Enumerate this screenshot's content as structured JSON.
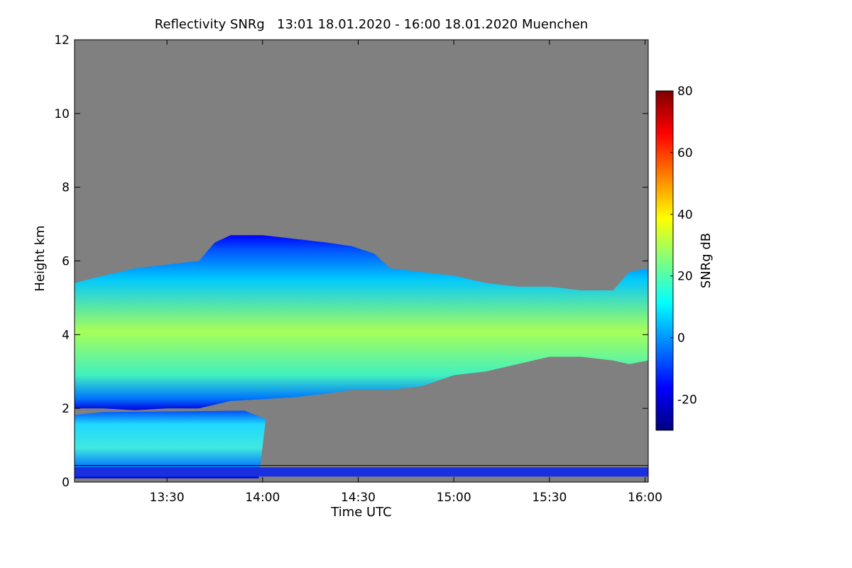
{
  "chart_data": {
    "type": "heatmap",
    "title": "Reflectivity SNRg   13:01 18.01.2020 - 16:00 18.01.2020 Muenchen",
    "xlabel": "Time UTC",
    "ylabel": "Height km",
    "xlim_minutes_utc": [
      781,
      961
    ],
    "ylim_km": [
      0,
      12
    ],
    "x_ticks": [
      {
        "minute": 810,
        "label": "13:30"
      },
      {
        "minute": 840,
        "label": "14:00"
      },
      {
        "minute": 870,
        "label": "14:30"
      },
      {
        "minute": 900,
        "label": "15:00"
      },
      {
        "minute": 930,
        "label": "15:30"
      },
      {
        "minute": 960,
        "label": "16:00"
      }
    ],
    "y_ticks": [
      {
        "value": 0,
        "label": "0"
      },
      {
        "value": 2,
        "label": "2"
      },
      {
        "value": 4,
        "label": "4"
      },
      {
        "value": 6,
        "label": "6"
      },
      {
        "value": 8,
        "label": "8"
      },
      {
        "value": 10,
        "label": "10"
      },
      {
        "value": 12,
        "label": "12"
      }
    ],
    "colorbar": {
      "label": "SNRg dB",
      "range": [
        -30,
        80
      ],
      "ticks": [
        {
          "value": -20,
          "label": "-20"
        },
        {
          "value": 0,
          "label": "0"
        },
        {
          "value": 20,
          "label": "20"
        },
        {
          "value": 40,
          "label": "40"
        },
        {
          "value": 60,
          "label": "60"
        },
        {
          "value": 80,
          "label": "80"
        }
      ],
      "colormap": [
        "#00007f",
        "#0000ff",
        "#007fff",
        "#00ffff",
        "#7fff7f",
        "#ffff00",
        "#ff7f00",
        "#ff0000",
        "#7f0000"
      ]
    },
    "background_color": "#808080",
    "main_cloud": {
      "description_series": "upper and lower cloud-layer edges (km) vs time",
      "time": [
        781,
        790,
        800,
        810,
        820,
        825,
        830,
        840,
        850,
        860,
        868,
        875,
        880,
        890,
        900,
        910,
        920,
        930,
        940,
        950,
        955,
        961
      ],
      "top_km": [
        5.4,
        5.6,
        5.8,
        5.9,
        6.0,
        6.5,
        6.7,
        6.7,
        6.6,
        6.5,
        6.4,
        6.2,
        5.8,
        5.7,
        5.6,
        5.4,
        5.3,
        5.3,
        5.2,
        5.2,
        5.7,
        5.8
      ],
      "base_km": [
        2.0,
        2.0,
        1.95,
        2.0,
        2.0,
        2.1,
        2.2,
        2.25,
        2.3,
        2.4,
        2.5,
        2.5,
        2.5,
        2.6,
        2.9,
        3.0,
        3.2,
        3.4,
        3.4,
        3.3,
        3.2,
        3.3
      ],
      "peak_snr_db": 30
    },
    "lower_precip": {
      "time_range": [
        781,
        841
      ],
      "top_km": 1.9,
      "base_km": 0.1,
      "peak_snr_db": 20
    },
    "surface_band_km": [
      0.15,
      0.4
    ]
  }
}
